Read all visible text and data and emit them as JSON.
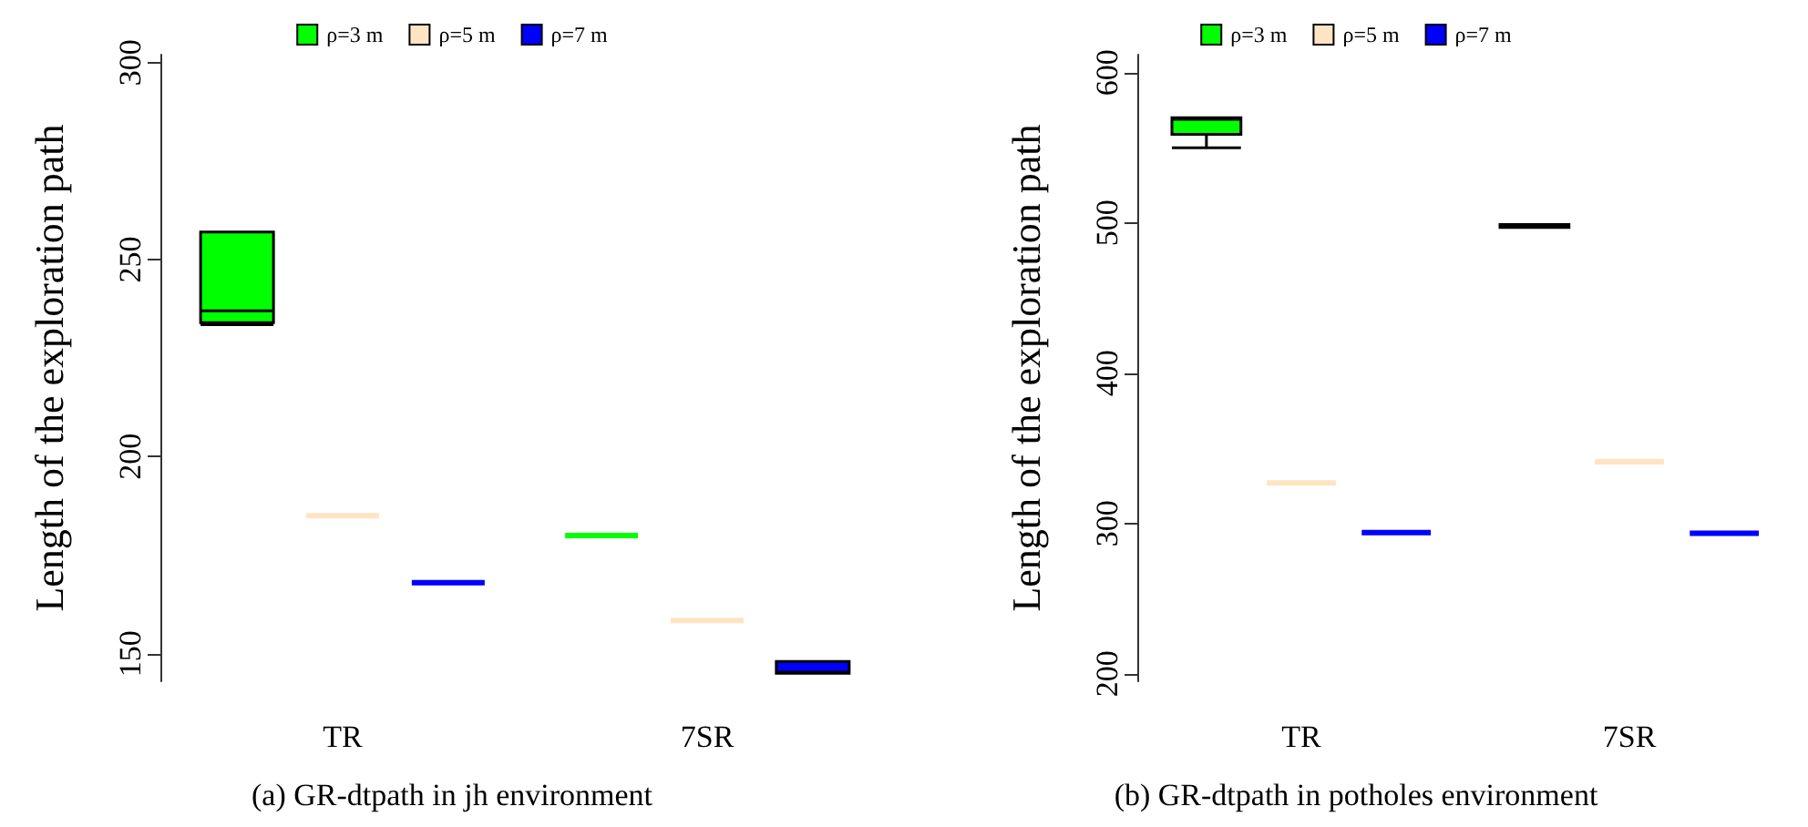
{
  "chart_data": [
    {
      "type": "box",
      "title": "(a) GR-dtpath in jh environment",
      "ylabel": "Length of the exploration path",
      "categories": [
        "TR",
        "7SR"
      ],
      "ylim": [
        143,
        302
      ],
      "yticks": [
        150,
        200,
        250,
        300
      ],
      "legend": "top",
      "grid": false,
      "series": [
        {
          "name": "ρ=3 m",
          "color": "#00ff00",
          "boxes": [
            {
              "low": 233.5,
              "q1": 234,
              "median": 237,
              "q3": 257,
              "high": 257
            },
            {
              "low": 180,
              "q1": 180,
              "median": 180,
              "q3": 180,
              "high": 180
            }
          ]
        },
        {
          "name": "ρ=5 m",
          "color": "#ffe4c4",
          "boxes": [
            {
              "low": 185,
              "q1": 185,
              "median": 185,
              "q3": 185,
              "high": 185
            },
            {
              "low": 158.4,
              "q1": 158.4,
              "median": 158.4,
              "q3": 158.4,
              "high": 158.4
            }
          ]
        },
        {
          "name": "ρ=7 m",
          "color": "#0000ff",
          "boxes": [
            {
              "low": 168,
              "q1": 168,
              "median": 168,
              "q3": 168,
              "high": 168
            },
            {
              "low": 145,
              "q1": 145,
              "median": 145.3,
              "q3": 148,
              "high": 148
            }
          ]
        }
      ]
    },
    {
      "type": "box",
      "title": "(b) GR-dtpath in potholes environment",
      "ylabel": "Length of the exploration path",
      "categories": [
        "TR",
        "7SR"
      ],
      "ylim": [
        195,
        612
      ],
      "yticks": [
        200,
        300,
        400,
        500,
        600
      ],
      "legend": "top",
      "grid": false,
      "series": [
        {
          "name": "ρ=3 m",
          "color": "#00ff00",
          "boxes": [
            {
              "low": 550,
              "q1": 559,
              "median": 569,
              "q3": 570,
              "high": 570
            },
            {
              "low": 497,
              "q1": 497,
              "median": 498,
              "q3": 499,
              "high": 499
            }
          ]
        },
        {
          "name": "ρ=5 m",
          "color": "#ffe4c4",
          "boxes": [
            {
              "low": 327,
              "q1": 327,
              "median": 327,
              "q3": 327,
              "high": 327
            },
            {
              "low": 341,
              "q1": 341,
              "median": 341,
              "q3": 341,
              "high": 341
            }
          ]
        },
        {
          "name": "ρ=7 m",
          "color": "#0000ff",
          "boxes": [
            {
              "low": 294,
              "q1": 294,
              "median": 294,
              "q3": 294,
              "high": 294
            },
            {
              "low": 293.5,
              "q1": 293.5,
              "median": 293.5,
              "q3": 293.5,
              "high": 293.5
            }
          ]
        }
      ]
    }
  ]
}
